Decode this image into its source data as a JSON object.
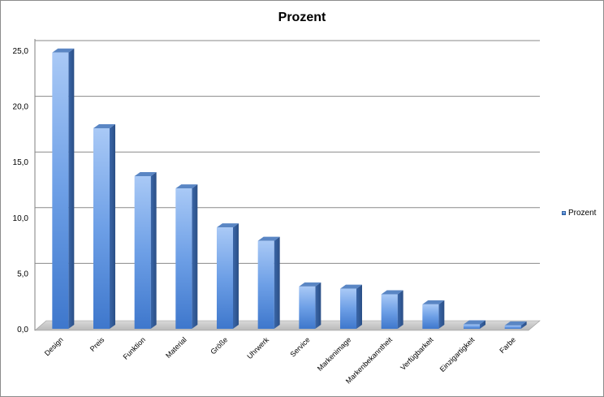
{
  "chart_data": {
    "type": "bar",
    "title": "Prozent",
    "xlabel": "",
    "ylabel": "",
    "ylim": [
      0,
      25
    ],
    "yticks": [
      "0,0",
      "5,0",
      "10,0",
      "15,0",
      "20,0",
      "25,0"
    ],
    "grid": true,
    "legend_position": "right",
    "categories": [
      "Design",
      "Preis",
      "Funktion",
      "Material",
      "Größe",
      "Uhrwerk",
      "Service",
      "Markenimage",
      "Markenbekanntheit",
      "Verfügbarkeit",
      "Einzigartigkeit",
      "Farbe"
    ],
    "series": [
      {
        "name": "Prozent",
        "color": "#4a86d8",
        "values": [
          24.8,
          18.0,
          13.7,
          12.6,
          9.1,
          7.9,
          3.8,
          3.6,
          3.1,
          2.2,
          0.4,
          0.3
        ]
      }
    ]
  }
}
